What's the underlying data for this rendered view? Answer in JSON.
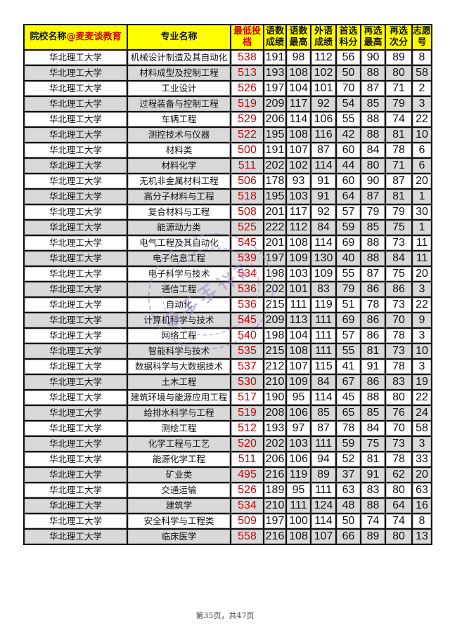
{
  "header": {
    "school": "院校名称",
    "brand": "@麦麦谈教育",
    "major": "专业名称",
    "min_score": "最低投档",
    "cn_math": "语数成绩",
    "cn_math_max": "语数最高",
    "foreign": "外语成绩",
    "first_sub": "首选科分",
    "second_max": "再选最高",
    "second_sub": "再选次分",
    "choice_no": "志愿号"
  },
  "rows": [
    [
      "华北理工大学",
      "机械设计制造及其自动化",
      "538",
      "191",
      "98",
      "112",
      "56",
      "90",
      "89",
      "8"
    ],
    [
      "华北理工大学",
      "材料成型及控制工程",
      "513",
      "193",
      "108",
      "102",
      "50",
      "88",
      "80",
      "58"
    ],
    [
      "华北理工大学",
      "工业设计",
      "526",
      "197",
      "104",
      "101",
      "70",
      "87",
      "71",
      "2"
    ],
    [
      "华北理工大学",
      "过程装备与控制工程",
      "519",
      "209",
      "117",
      "92",
      "54",
      "85",
      "79",
      "3"
    ],
    [
      "华北理工大学",
      "车辆工程",
      "529",
      "206",
      "114",
      "106",
      "55",
      "88",
      "74",
      "22"
    ],
    [
      "华北理工大学",
      "测控技术与仪器",
      "522",
      "195",
      "108",
      "116",
      "42",
      "88",
      "81",
      "10"
    ],
    [
      "华北理工大学",
      "材料类",
      "500",
      "191",
      "107",
      "87",
      "60",
      "84",
      "78",
      "6"
    ],
    [
      "华北理工大学",
      "材料化学",
      "511",
      "202",
      "102",
      "114",
      "44",
      "80",
      "71",
      "6"
    ],
    [
      "华北理工大学",
      "无机非金属材料工程",
      "506",
      "178",
      "93",
      "91",
      "60",
      "90",
      "87",
      "20"
    ],
    [
      "华北理工大学",
      "高分子材料与工程",
      "518",
      "195",
      "103",
      "91",
      "64",
      "87",
      "81",
      "1"
    ],
    [
      "华北理工大学",
      "复合材料与工程",
      "508",
      "201",
      "117",
      "92",
      "57",
      "79",
      "79",
      "30"
    ],
    [
      "华北理工大学",
      "能源动力类",
      "525",
      "222",
      "112",
      "84",
      "59",
      "85",
      "75",
      "1"
    ],
    [
      "华北理工大学",
      "电气工程及其自动化",
      "545",
      "201",
      "108",
      "114",
      "69",
      "88",
      "73",
      "11"
    ],
    [
      "华北理工大学",
      "电子信息工程",
      "539",
      "197",
      "109",
      "130",
      "40",
      "88",
      "84",
      "11"
    ],
    [
      "华北理工大学",
      "电子科学与技术",
      "534",
      "198",
      "103",
      "109",
      "55",
      "87",
      "75",
      "20"
    ],
    [
      "华北理工大学",
      "通信工程",
      "536",
      "202",
      "101",
      "83",
      "79",
      "86",
      "86",
      "3"
    ],
    [
      "华北理工大学",
      "自动化",
      "536",
      "215",
      "111",
      "119",
      "51",
      "78",
      "73",
      "22"
    ],
    [
      "华北理工大学",
      "计算机科学与技术",
      "545",
      "209",
      "113",
      "111",
      "69",
      "86",
      "70",
      "9"
    ],
    [
      "华北理工大学",
      "网络工程",
      "540",
      "198",
      "104",
      "111",
      "57",
      "86",
      "78",
      "3"
    ],
    [
      "华北理工大学",
      "智能科学与技术",
      "535",
      "215",
      "108",
      "111",
      "55",
      "81",
      "73",
      "10"
    ],
    [
      "华北理工大学",
      "数据科学与大数据技术",
      "537",
      "212",
      "107",
      "115",
      "41",
      "91",
      "78",
      "3"
    ],
    [
      "华北理工大学",
      "土木工程",
      "530",
      "210",
      "109",
      "84",
      "67",
      "86",
      "83",
      "19"
    ],
    [
      "华北理工大学",
      "建筑环境与能源应用工程",
      "517",
      "190",
      "95",
      "114",
      "45",
      "88",
      "80",
      "22"
    ],
    [
      "华北理工大学",
      "给排水科学与工程",
      "519",
      "208",
      "106",
      "85",
      "65",
      "85",
      "76",
      "24"
    ],
    [
      "华北理工大学",
      "测绘工程",
      "512",
      "193",
      "97",
      "87",
      "78",
      "84",
      "70",
      "58"
    ],
    [
      "华北理工大学",
      "化学工程与工艺",
      "520",
      "202",
      "103",
      "111",
      "59",
      "75",
      "73",
      "3"
    ],
    [
      "华北理工大学",
      "能源化学工程",
      "511",
      "206",
      "106",
      "94",
      "52",
      "81",
      "78",
      "33"
    ],
    [
      "华北理工大学",
      "矿业类",
      "495",
      "216",
      "119",
      "89",
      "37",
      "91",
      "62",
      "20"
    ],
    [
      "华北理工大学",
      "交通运输",
      "526",
      "189",
      "95",
      "111",
      "63",
      "83",
      "80",
      "63"
    ],
    [
      "华北理工大学",
      "建筑学",
      "534",
      "210",
      "111",
      "124",
      "48",
      "88",
      "64",
      "16"
    ],
    [
      "华北理工大学",
      "安全科学与工程类",
      "509",
      "197",
      "100",
      "114",
      "50",
      "74",
      "74",
      "8"
    ],
    [
      "华北理工大学",
      "临床医学",
      "558",
      "216",
      "108",
      "107",
      "66",
      "89",
      "80",
      "13"
    ]
  ],
  "footer": "第35页，共47页",
  "watermark": "@麦麦谈教育",
  "colors": {
    "header_bg": "#ffff00",
    "accent_red": "#d00000",
    "alt_row": "#d9d9d9",
    "watermark": "#9b7fc9"
  }
}
